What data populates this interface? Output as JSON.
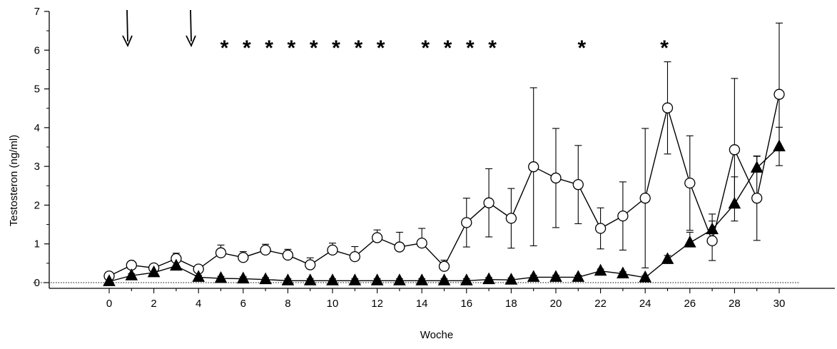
{
  "chart_data": {
    "type": "line",
    "title": "",
    "xlabel": "Woche",
    "ylabel": "Testosteron (ng/ml)",
    "xlim": [
      -4.9,
      32.2
    ],
    "ylim": [
      -0.2,
      7
    ],
    "x_ticks": [
      0,
      2,
      4,
      6,
      8,
      10,
      12,
      14,
      16,
      18,
      20,
      22,
      24,
      26,
      28,
      30
    ],
    "y_ticks": [
      0,
      1,
      2,
      3,
      4,
      5,
      6,
      7
    ],
    "reference_line_y": 0,
    "arrows_at_weeks": [
      0,
      3
    ],
    "significance_marker": "*",
    "significance_weeks": [
      5,
      6,
      7,
      8,
      9,
      10,
      11,
      12,
      14,
      15,
      16,
      17,
      21,
      24.7
    ],
    "series": [
      {
        "marker": "open-circle",
        "color": "#000000",
        "x": [
          0,
          1,
          2,
          3,
          4,
          5,
          6,
          7,
          8,
          9,
          10,
          11,
          12,
          13,
          14,
          15,
          16,
          17,
          18,
          19,
          20,
          21,
          22,
          23,
          24,
          25,
          26,
          27,
          28,
          29,
          30
        ],
        "y": [
          0.17,
          0.45,
          0.38,
          0.62,
          0.35,
          0.77,
          0.65,
          0.84,
          0.71,
          0.46,
          0.84,
          0.67,
          1.16,
          0.92,
          1.02,
          0.42,
          1.55,
          2.06,
          1.66,
          2.99,
          2.7,
          2.53,
          1.4,
          1.72,
          2.18,
          4.51,
          2.57,
          1.08,
          3.43,
          2.18,
          4.86
        ],
        "error": [
          0.05,
          0.05,
          0.05,
          0.14,
          0.05,
          0.2,
          0.15,
          0.15,
          0.15,
          0.18,
          0.18,
          0.26,
          0.2,
          0.38,
          0.38,
          0.16,
          0.63,
          0.88,
          0.77,
          2.04,
          1.28,
          1.01,
          0.53,
          0.88,
          1.8,
          1.19,
          1.22,
          0.51,
          1.84,
          1.09,
          1.84
        ]
      },
      {
        "marker": "filled-triangle",
        "color": "#000000",
        "x": [
          0,
          1,
          2,
          3,
          4,
          5,
          6,
          7,
          8,
          9,
          10,
          11,
          12,
          13,
          14,
          15,
          16,
          17,
          18,
          19,
          20,
          21,
          22,
          23,
          24,
          25,
          26,
          27,
          28,
          29,
          30
        ],
        "y": [
          0.03,
          0.18,
          0.26,
          0.43,
          0.14,
          0.11,
          0.1,
          0.08,
          0.05,
          0.05,
          0.05,
          0.05,
          0.05,
          0.05,
          0.05,
          0.05,
          0.05,
          0.08,
          0.07,
          0.14,
          0.14,
          0.14,
          0.3,
          0.23,
          0.13,
          0.6,
          1.03,
          1.37,
          2.03,
          2.96,
          3.51
        ],
        "error": [
          0.05,
          0.05,
          0.05,
          0.12,
          0.05,
          0.05,
          0.05,
          0.05,
          0.05,
          0.05,
          0.05,
          0.05,
          0.05,
          0.05,
          0.05,
          0.05,
          0.05,
          0.05,
          0.05,
          0.05,
          0.05,
          0.05,
          0.05,
          0.05,
          0.05,
          0.1,
          0.27,
          0.4,
          0.7,
          0.3,
          0.5
        ]
      }
    ]
  }
}
